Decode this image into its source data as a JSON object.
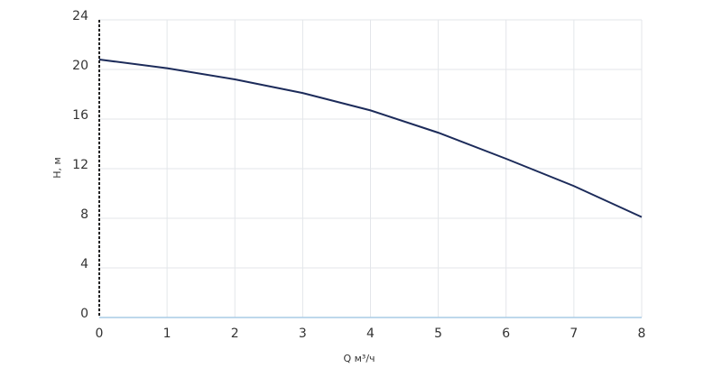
{
  "chart_data": {
    "type": "line",
    "x_label": "Q м³/ч",
    "y_label": "H, м",
    "x": [
      0,
      1,
      2,
      3,
      4,
      5,
      6,
      7,
      8
    ],
    "series": [
      {
        "color": "#1c2b5a",
        "values": [
          20.8,
          20.1,
          19.2,
          18.1,
          16.7,
          14.9,
          12.8,
          10.6,
          8.1
        ]
      }
    ],
    "xlim": [
      0,
      8
    ],
    "xticks": [
      0,
      1,
      2,
      3,
      4,
      5,
      6,
      7,
      8
    ],
    "ylim": [
      0,
      24
    ],
    "yticks": [
      0,
      4,
      8,
      12,
      16,
      20,
      24
    ],
    "grid": true
  }
}
